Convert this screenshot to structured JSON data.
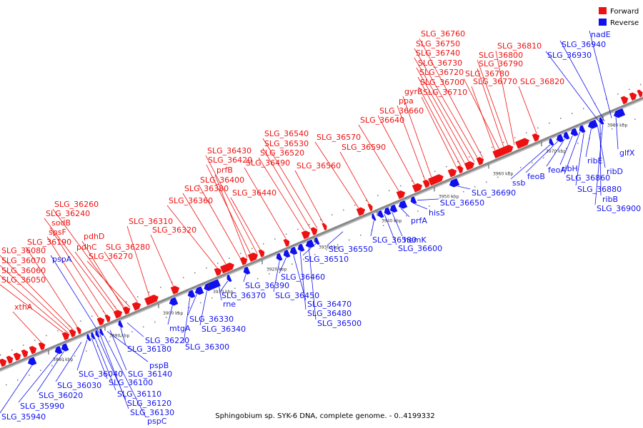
{
  "caption": "Sphingobium sp. SYK-6 DNA, complete genome. - 0..4199332",
  "legend": [
    {
      "label": "Forward",
      "color": "#ee1111"
    },
    {
      "label": "Reverse",
      "color": "#1111ee"
    }
  ],
  "colors": {
    "forward": "#ee1111",
    "reverse": "#1111ee",
    "axis": "#888888"
  },
  "ticks": [
    "3880 kbp",
    "3890 kbp",
    "3900 kbp",
    "3910 kbp",
    "3920 kbp",
    "3930 kbp",
    "3940 kbp",
    "3950 kbp",
    "3960 kbp",
    "3970 kbp",
    "3980 kbp"
  ],
  "forward_labels": [
    "xthA",
    "SLG_36050",
    "SLG_36060",
    "SLG_36070",
    "SLG_36080",
    "SLG_36190",
    "spsF",
    "sodB",
    "SLG_36240",
    "SLG_36260",
    "pdhC",
    "pdhD",
    "SLG_36270",
    "SLG_36280",
    "SLG_36310",
    "SLG_36320",
    "SLG_36360",
    "SLG_36380",
    "SLG_36400",
    "prfB",
    "SLG_36420",
    "SLG_36430",
    "SLG_36440",
    "SLG_36490",
    "SLG_36520",
    "SLG_36530",
    "SLG_36540",
    "SLG_36560",
    "SLG_36570",
    "SLG_36590",
    "SLG_36640",
    "SLG_36660",
    "ppa",
    "gyrB",
    "SLG_36710",
    "SLG_36700",
    "SLG_36720",
    "SLG_36730",
    "SLG_36740",
    "SLG_36750",
    "SLG_36760",
    "SLG_36770",
    "SLG_36780",
    "SLG_36790",
    "SLG_36800",
    "SLG_36810",
    "SLG_36820"
  ],
  "reverse_labels": [
    "SLG_35940",
    "SLG_35990",
    "SLG_36020",
    "SLG_36030",
    "SLG_36040",
    "SLG_36100",
    "SLG_36110",
    "SLG_36120",
    "SLG_36130",
    "pspC",
    "pspB",
    "SLG_36140",
    "SLG_36180",
    "pspA",
    "SLG_36220",
    "mtgA",
    "SLG_36300",
    "SLG_36330",
    "SLG_36340",
    "rne",
    "SLG_36370",
    "SLG_36390",
    "SLG_36450",
    "SLG_36460",
    "SLG_36470",
    "SLG_36480",
    "SLG_36500",
    "SLG_36510",
    "SLG_36550",
    "SLG_36580",
    "SLG_36600",
    "hemK",
    "prfA",
    "hisS",
    "SLG_36650",
    "SLG_36690",
    "ssb",
    "feoB",
    "feoA",
    "ribH",
    "SLG_36860",
    "SLG_36880",
    "ribE",
    "ribD",
    "ribB",
    "SLG_36900",
    "glfX",
    "SLG_36930",
    "SLG_36940",
    "nadE"
  ]
}
